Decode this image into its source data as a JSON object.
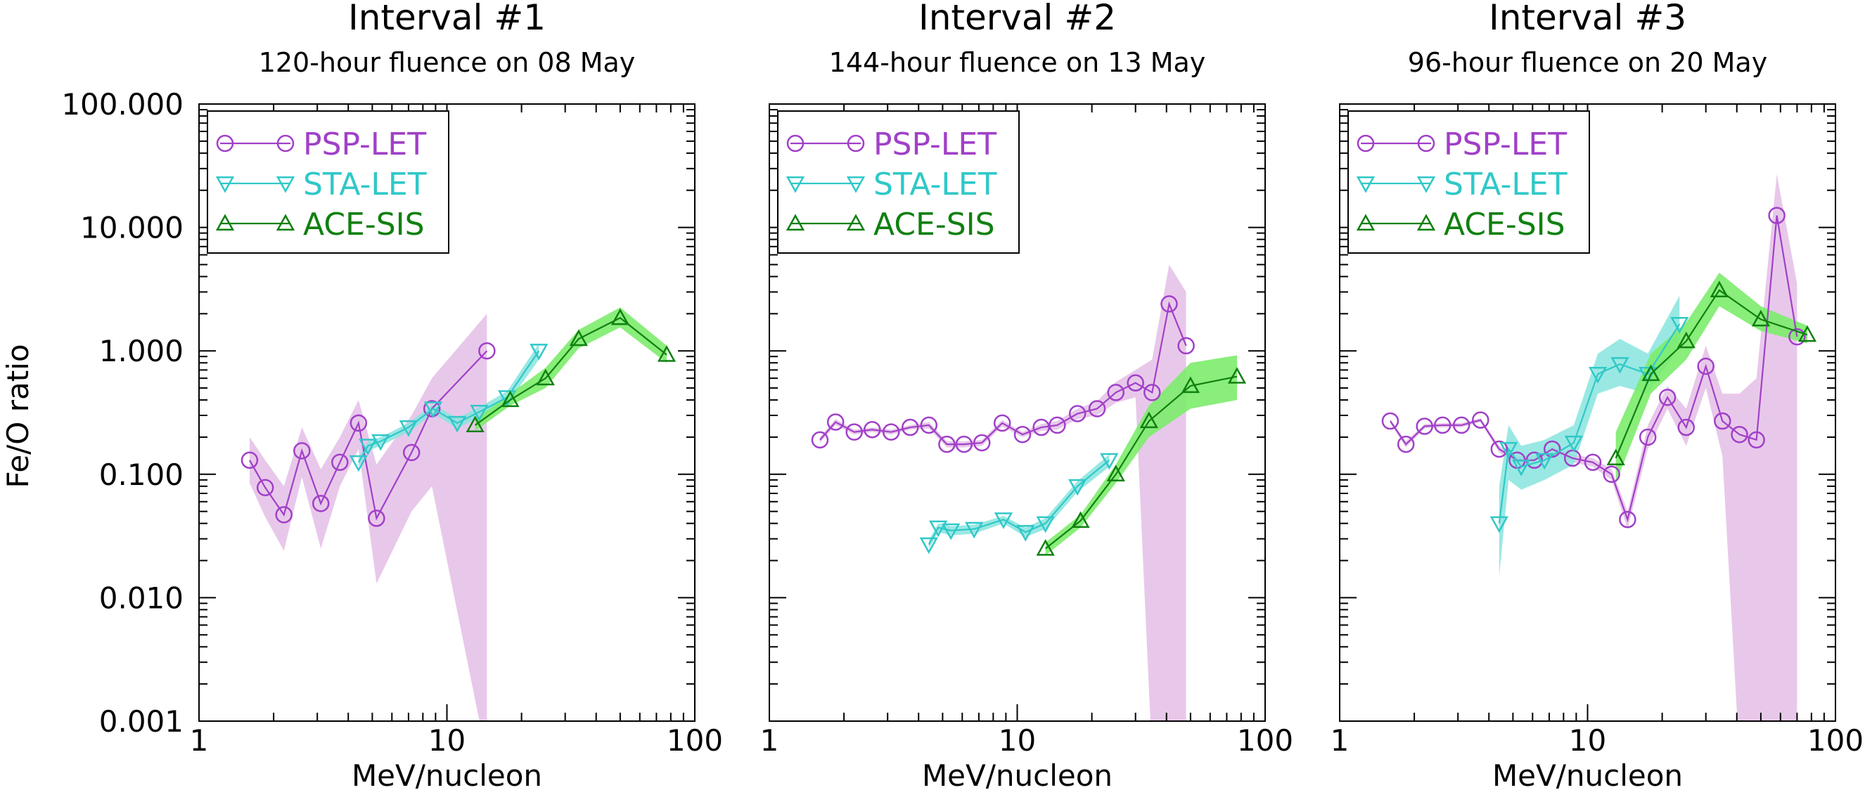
{
  "figure": {
    "ylabel": "Fe/O ratio",
    "xlabel": "MeV/nucleon",
    "x_ticks": [
      "1",
      "10",
      "100"
    ],
    "y_ticks": [
      "0.001",
      "0.010",
      "0.100",
      "1.000",
      "10.000",
      "100.000"
    ],
    "legend": [
      {
        "name": "PSP-LET",
        "color": "#a040c8"
      },
      {
        "name": "STA-LET",
        "color": "#30c8c8"
      },
      {
        "name": "ACE-SIS",
        "color": "#108010"
      }
    ],
    "panels": [
      {
        "title": "Interval #1",
        "subtitle": "120-hour fluence on 08 May"
      },
      {
        "title": "Interval #2",
        "subtitle": "144-hour fluence on 13 May"
      },
      {
        "title": "Interval #3",
        "subtitle": "96-hour fluence on 20 May"
      }
    ]
  },
  "colors": {
    "psp_line": "#a040c8",
    "psp_band": "#e8c8ea",
    "sta_line": "#30c8c8",
    "sta_band": "#88e4de",
    "ace_line": "#108010",
    "ace_band": "#7cec6c"
  },
  "chart_data": [
    {
      "type": "line",
      "title": "Interval #1",
      "subtitle": "120-hour fluence on 08 May",
      "xlabel": "MeV/nucleon",
      "ylabel": "Fe/O ratio",
      "x_scale": "log",
      "y_scale": "log",
      "xlim": [
        1,
        100
      ],
      "ylim": [
        0.001,
        100
      ],
      "legend_position": "top-left",
      "series": [
        {
          "name": "PSP-LET",
          "marker": "circle",
          "x": [
            1.6,
            1.85,
            2.2,
            2.6,
            3.1,
            3.7,
            4.4,
            5.2,
            7.2,
            8.7,
            14.5
          ],
          "y": [
            0.13,
            0.078,
            0.047,
            0.155,
            0.058,
            0.125,
            0.26,
            0.044,
            0.15,
            0.34,
            1.0
          ],
          "low": [
            0.085,
            0.045,
            0.024,
            0.095,
            0.025,
            0.08,
            0.16,
            0.013,
            0.05,
            0.08,
            0.0005
          ],
          "high": [
            0.2,
            0.13,
            0.08,
            0.24,
            0.11,
            0.2,
            0.4,
            0.12,
            0.3,
            0.6,
            2.0
          ]
        },
        {
          "name": "STA-LET",
          "marker": "triangle-down",
          "x": [
            4.4,
            4.8,
            5.4,
            7.0,
            8.8,
            11.0,
            13.5,
            17.5,
            23.5
          ],
          "y": [
            0.125,
            0.17,
            0.185,
            0.24,
            0.34,
            0.26,
            0.32,
            0.42,
            1.0
          ],
          "low": [
            0.115,
            0.155,
            0.17,
            0.22,
            0.31,
            0.235,
            0.29,
            0.37,
            0.85
          ],
          "high": [
            0.135,
            0.185,
            0.2,
            0.26,
            0.37,
            0.285,
            0.35,
            0.47,
            1.15
          ]
        },
        {
          "name": "ACE-SIS",
          "marker": "triangle-up",
          "x": [
            13.0,
            18.0,
            25.0,
            34.0,
            50.0,
            77.0
          ],
          "y": [
            0.25,
            0.4,
            0.6,
            1.25,
            1.85,
            0.93
          ],
          "low": [
            0.225,
            0.36,
            0.5,
            1.05,
            1.55,
            0.8
          ],
          "high": [
            0.28,
            0.45,
            0.73,
            1.48,
            2.25,
            1.1
          ]
        }
      ]
    },
    {
      "type": "line",
      "title": "Interval #2",
      "subtitle": "144-hour fluence on 13 May",
      "xlabel": "MeV/nucleon",
      "ylabel": "Fe/O ratio",
      "x_scale": "log",
      "y_scale": "log",
      "xlim": [
        1,
        100
      ],
      "ylim": [
        0.001,
        100
      ],
      "legend_position": "top-left",
      "series": [
        {
          "name": "PSP-LET",
          "marker": "circle",
          "x": [
            1.6,
            1.85,
            2.2,
            2.6,
            3.1,
            3.7,
            4.4,
            5.2,
            6.1,
            7.2,
            8.7,
            10.5,
            12.5,
            14.5,
            17.5,
            21.0,
            25.0,
            30.0,
            35.0,
            41.0,
            48.0
          ],
          "y": [
            0.19,
            0.265,
            0.22,
            0.23,
            0.22,
            0.24,
            0.25,
            0.175,
            0.175,
            0.18,
            0.26,
            0.21,
            0.24,
            0.25,
            0.31,
            0.34,
            0.46,
            0.55,
            0.46,
            2.4,
            1.1
          ],
          "low": [
            0.18,
            0.25,
            0.21,
            0.22,
            0.21,
            0.23,
            0.235,
            0.165,
            0.165,
            0.17,
            0.245,
            0.2,
            0.225,
            0.23,
            0.28,
            0.3,
            0.38,
            0.42,
            0.0005,
            0.0005,
            0.0005
          ],
          "high": [
            0.2,
            0.28,
            0.23,
            0.24,
            0.23,
            0.25,
            0.265,
            0.185,
            0.185,
            0.19,
            0.275,
            0.22,
            0.255,
            0.27,
            0.34,
            0.39,
            0.56,
            0.7,
            0.85,
            5.0,
            3.0
          ]
        },
        {
          "name": "STA-LET",
          "marker": "triangle-down",
          "x": [
            4.4,
            4.8,
            5.4,
            6.7,
            8.8,
            10.8,
            13.0,
            17.5,
            23.5
          ],
          "y": [
            0.027,
            0.037,
            0.035,
            0.036,
            0.043,
            0.034,
            0.04,
            0.08,
            0.13
          ],
          "low": [
            0.025,
            0.034,
            0.032,
            0.033,
            0.04,
            0.031,
            0.036,
            0.072,
            0.115
          ],
          "high": [
            0.029,
            0.04,
            0.038,
            0.039,
            0.046,
            0.037,
            0.044,
            0.088,
            0.145
          ]
        },
        {
          "name": "ACE-SIS",
          "marker": "triangle-up",
          "x": [
            13.0,
            18.0,
            25.0,
            34.0,
            50.0,
            77.0
          ],
          "y": [
            0.025,
            0.042,
            0.1,
            0.27,
            0.52,
            0.62
          ],
          "low": [
            0.022,
            0.037,
            0.085,
            0.2,
            0.34,
            0.4
          ],
          "high": [
            0.028,
            0.047,
            0.12,
            0.36,
            0.8,
            0.92
          ]
        }
      ]
    },
    {
      "type": "line",
      "title": "Interval #3",
      "subtitle": "96-hour fluence on 20 May",
      "xlabel": "MeV/nucleon",
      "ylabel": "Fe/O ratio",
      "x_scale": "log",
      "y_scale": "log",
      "xlim": [
        1,
        100
      ],
      "ylim": [
        0.001,
        100
      ],
      "legend_position": "top-left",
      "series": [
        {
          "name": "PSP-LET",
          "marker": "circle",
          "x": [
            1.6,
            1.85,
            2.2,
            2.6,
            3.1,
            3.7,
            4.4,
            5.2,
            6.1,
            7.2,
            8.7,
            10.5,
            12.5,
            14.5,
            17.5,
            21.0,
            25.0,
            30.0,
            35.0,
            41.0,
            48.0,
            58.0,
            70.0
          ],
          "y": [
            0.27,
            0.175,
            0.245,
            0.25,
            0.25,
            0.275,
            0.16,
            0.13,
            0.13,
            0.16,
            0.135,
            0.125,
            0.1,
            0.043,
            0.2,
            0.42,
            0.24,
            0.75,
            0.27,
            0.21,
            0.19,
            12.5,
            1.3
          ],
          "low": [
            0.26,
            0.165,
            0.235,
            0.24,
            0.24,
            0.265,
            0.15,
            0.12,
            0.12,
            0.15,
            0.125,
            0.115,
            0.09,
            0.036,
            0.16,
            0.34,
            0.17,
            0.5,
            0.14,
            0.0005,
            0.0005,
            0.0005,
            0.0005
          ],
          "high": [
            0.28,
            0.185,
            0.255,
            0.26,
            0.26,
            0.285,
            0.17,
            0.14,
            0.14,
            0.17,
            0.145,
            0.135,
            0.11,
            0.05,
            0.25,
            0.52,
            0.34,
            1.1,
            0.45,
            0.45,
            0.6,
            27.0,
            3.5
          ]
        },
        {
          "name": "STA-LET",
          "marker": "triangle-down",
          "x": [
            4.4,
            4.8,
            5.4,
            6.7,
            8.8,
            11.0,
            13.5,
            17.5,
            23.5
          ],
          "y": [
            0.04,
            0.16,
            0.115,
            0.13,
            0.18,
            0.65,
            0.78,
            0.65,
            1.65
          ],
          "low": [
            0.015,
            0.09,
            0.075,
            0.09,
            0.12,
            0.45,
            0.52,
            0.45,
            1.1
          ],
          "high": [
            0.08,
            0.25,
            0.17,
            0.19,
            0.25,
            0.95,
            1.25,
            0.95,
            2.8
          ]
        },
        {
          "name": "ACE-SIS",
          "marker": "triangle-up",
          "x": [
            13.0,
            18.0,
            25.0,
            34.0,
            50.0,
            77.0
          ],
          "y": [
            0.135,
            0.65,
            1.2,
            3.1,
            1.8,
            1.35
          ],
          "low": [
            0.085,
            0.45,
            0.85,
            2.3,
            1.45,
            1.15
          ],
          "high": [
            0.22,
            0.95,
            1.7,
            4.3,
            2.3,
            1.6
          ]
        }
      ]
    }
  ]
}
